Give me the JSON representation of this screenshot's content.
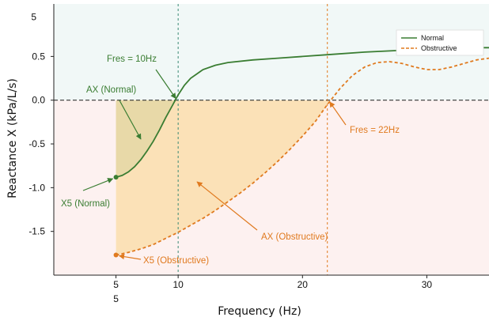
{
  "chart_data": {
    "type": "line",
    "xlabel": "Frequency (Hz)",
    "ylabel": "Reactance X (kPa/L/s)",
    "x_ticks": [
      {
        "value": 5,
        "label": "5"
      },
      {
        "value": 10,
        "label": "10"
      },
      {
        "value": 20,
        "label": "20"
      },
      {
        "value": 30,
        "label": "30"
      }
    ],
    "x_tick_extra": {
      "value": 5,
      "label": "5"
    },
    "y_ticks": [
      {
        "value": 0.5,
        "label": "0.5"
      },
      {
        "value": 0.0,
        "label": "0.0"
      },
      {
        "value": -0.5,
        "label": "-0.5"
      },
      {
        "value": -1.0,
        "label": "-1.0"
      },
      {
        "value": -1.5,
        "label": "-1.5"
      }
    ],
    "y_tick_extra": {
      "value": 0.95,
      "label": "5"
    },
    "xlim": [
      0,
      35
    ],
    "ylim": [
      -2.0,
      1.1
    ],
    "series": [
      {
        "name": "Normal",
        "color": "#3a7d32",
        "style": "solid",
        "x": [
          5,
          5.5,
          6,
          6.5,
          7,
          7.5,
          8,
          8.5,
          9,
          9.5,
          10,
          10.5,
          11,
          12,
          13,
          14,
          16,
          18,
          20,
          22,
          25,
          28,
          30,
          32,
          35
        ],
        "y": [
          -0.88,
          -0.86,
          -0.82,
          -0.76,
          -0.68,
          -0.58,
          -0.47,
          -0.34,
          -0.2,
          -0.07,
          0.06,
          0.17,
          0.25,
          0.35,
          0.4,
          0.43,
          0.46,
          0.48,
          0.5,
          0.52,
          0.55,
          0.57,
          0.58,
          0.6,
          0.6
        ]
      },
      {
        "name": "Obstructive",
        "color": "#e07a1f",
        "style": "dashed",
        "x": [
          5,
          6,
          7,
          8,
          9,
          10,
          11,
          12,
          13,
          14,
          15,
          16,
          17,
          18,
          19,
          20,
          21,
          22,
          23,
          24,
          25,
          26,
          27,
          28,
          29,
          30,
          31,
          32,
          33,
          34,
          35
        ],
        "y": [
          -1.77,
          -1.74,
          -1.7,
          -1.65,
          -1.58,
          -1.51,
          -1.43,
          -1.35,
          -1.26,
          -1.16,
          -1.06,
          -0.95,
          -0.83,
          -0.7,
          -0.56,
          -0.41,
          -0.25,
          -0.05,
          0.13,
          0.28,
          0.38,
          0.43,
          0.44,
          0.42,
          0.38,
          0.35,
          0.35,
          0.38,
          0.42,
          0.46,
          0.48
        ]
      }
    ],
    "reference_lines": {
      "y_zero": 0.0,
      "fres_normal": 10,
      "fres_obstructive": 22
    },
    "annotations": {
      "fres_normal": "Fres = 10Hz",
      "ax_normal": "AX (Normal)",
      "x5_normal": "X5 (Normal)",
      "fres_obstructive": "Fres = 22Hz",
      "ax_obstructive": "AX (Obstructive)",
      "x5_obstructive": "X5 (Obstructive)"
    },
    "legend": {
      "placement": "top-right",
      "entries": [
        "Normal",
        "Obstructive"
      ]
    },
    "colors": {
      "normal": "#3a7d32",
      "obstructive": "#e07a1f",
      "positive_bg": "#f1f8f7",
      "negative_bg": "#fdf1f0",
      "ax_normal_fill": "#e8d9a8",
      "ax_obstructive_fill": "#fbe1b7"
    },
    "grid": false
  }
}
